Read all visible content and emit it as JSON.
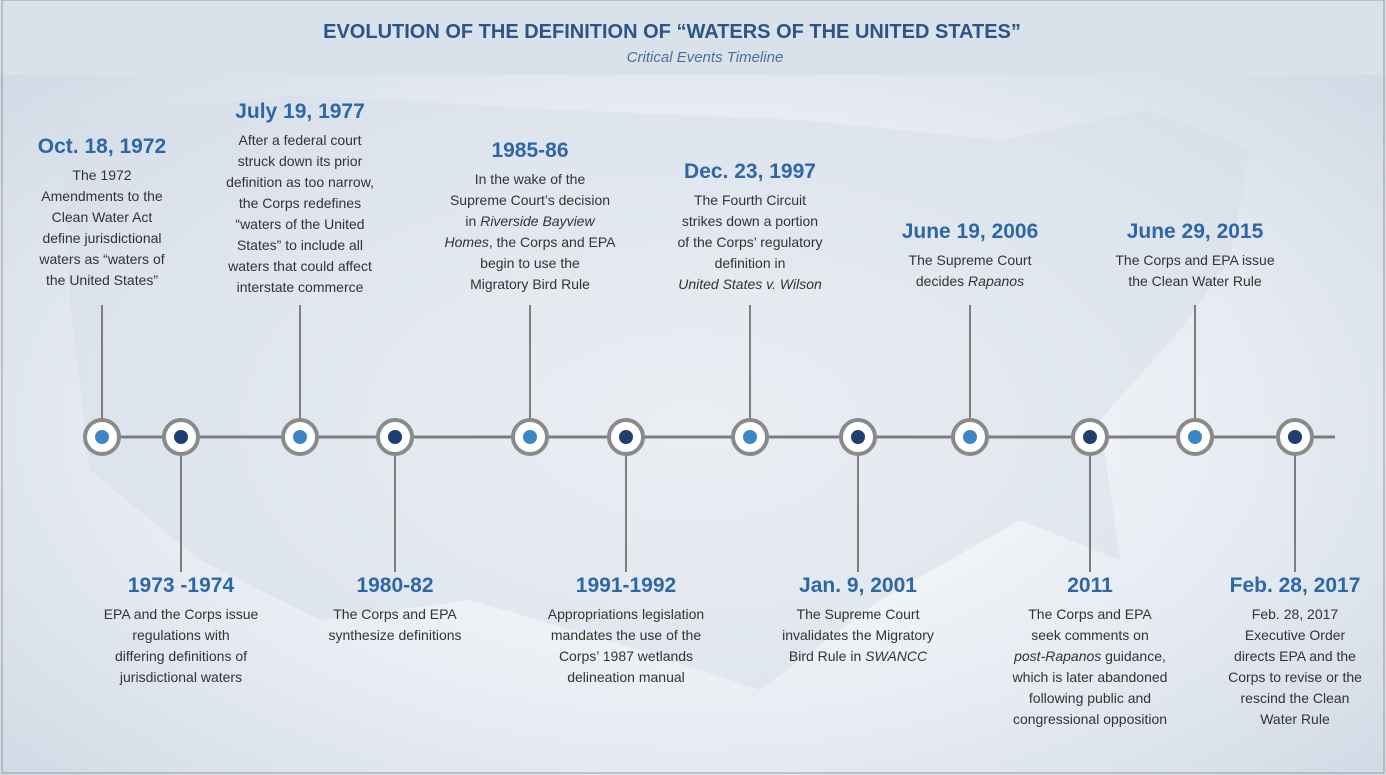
{
  "header": {
    "title": "EVOLUTION OF THE DEFINITION OF “WATERS OF THE UNITED STATES”",
    "subtitle": "Critical Events Timeline"
  },
  "events": [
    {
      "date": "Oct. 18, 1972",
      "lines": [
        "The 1972",
        "Amendments to the",
        "Clean Water Act",
        "define jurisdictional",
        "waters as “waters of",
        "the United States”"
      ]
    },
    {
      "date": "1973 -1974",
      "lines": [
        "EPA and the Corps issue",
        "regulations with",
        "differing definitions of",
        "jurisdictional waters"
      ]
    },
    {
      "date": "July 19, 1977",
      "lines": [
        "After a federal court",
        "struck down its prior",
        "definition as too narrow,",
        "the Corps redefines",
        "“waters of the United",
        "States” to include all",
        "waters that could affect",
        "interstate commerce"
      ]
    },
    {
      "date": "1980-82",
      "lines": [
        "The Corps and EPA",
        "synthesize definitions"
      ]
    },
    {
      "date": "1985-86",
      "lines": [
        "In the wake of the",
        "Supreme Court’s decision",
        [
          "in ",
          {
            "text": "Riverside Bayview",
            "italic": true
          }
        ],
        [
          {
            "text": "Homes",
            "italic": true
          },
          ", the Corps and EPA"
        ],
        "begin to use the",
        "Migratory Bird Rule"
      ]
    },
    {
      "date": "1991-1992",
      "lines": [
        "Appropriations legislation",
        "mandates the use of the",
        "Corps’ 1987 wetlands",
        "delineation manual"
      ]
    },
    {
      "date": "Dec. 23, 1997",
      "lines": [
        "The Fourth Circuit",
        "strikes down a portion",
        "of the Corps’ regulatory",
        "definition in",
        [
          {
            "text": "United States v. Wilson",
            "italic": true
          }
        ]
      ]
    },
    {
      "date": "Jan. 9, 2001",
      "lines": [
        "The Supreme Court",
        "invalidates the Migratory",
        [
          "Bird Rule in ",
          {
            "text": "SWANCC",
            "italic": true
          }
        ]
      ]
    },
    {
      "date": "June 19, 2006",
      "lines": [
        "The Supreme Court",
        [
          "decides ",
          {
            "text": "Rapanos",
            "italic": true
          }
        ]
      ]
    },
    {
      "date": "2011",
      "lines": [
        "The Corps and EPA",
        "seek comments on",
        [
          {
            "text": "post-Rapanos",
            "italic": true
          },
          " guidance,"
        ],
        "which is later abandoned",
        "following public and",
        "congressional opposition"
      ]
    },
    {
      "date": "June 29, 2015",
      "lines": [
        "The Corps and EPA issue",
        "the Clean Water Rule"
      ]
    },
    {
      "date": "Feb. 28, 2017",
      "lines": [
        "Feb. 28, 2017",
        "Executive Order",
        "directs EPA and the",
        "Corps to revise or the",
        "rescind the Clean",
        "Water Rule"
      ]
    }
  ]
}
